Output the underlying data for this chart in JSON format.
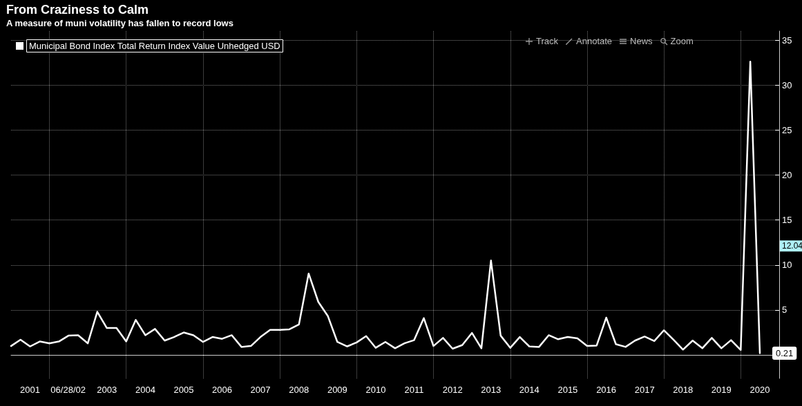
{
  "chart_data": {
    "type": "line",
    "title": "From Craziness to Calm",
    "subtitle": "A measure of muni volatility has fallen to record lows",
    "x": [
      "2001-01",
      "2001-04",
      "2001-07",
      "2001-10",
      "2002-01",
      "2002-04",
      "2002-07",
      "2002-10",
      "2003-01",
      "2003-04",
      "2003-07",
      "2003-10",
      "2004-01",
      "2004-04",
      "2004-07",
      "2004-10",
      "2005-01",
      "2005-04",
      "2005-07",
      "2005-10",
      "2006-01",
      "2006-04",
      "2006-07",
      "2006-10",
      "2007-01",
      "2007-04",
      "2007-07",
      "2007-10",
      "2008-01",
      "2008-04",
      "2008-07",
      "2008-10",
      "2009-01",
      "2009-04",
      "2009-07",
      "2009-10",
      "2010-01",
      "2010-04",
      "2010-07",
      "2010-10",
      "2011-01",
      "2011-04",
      "2011-07",
      "2011-10",
      "2012-01",
      "2012-04",
      "2012-07",
      "2012-10",
      "2013-01",
      "2013-04",
      "2013-07",
      "2013-10",
      "2014-01",
      "2014-04",
      "2014-07",
      "2014-10",
      "2015-01",
      "2015-04",
      "2015-07",
      "2015-10",
      "2016-01",
      "2016-04",
      "2016-07",
      "2016-10",
      "2017-01",
      "2017-04",
      "2017-07",
      "2017-10",
      "2018-01",
      "2018-04",
      "2018-07",
      "2018-10",
      "2019-01",
      "2019-04",
      "2019-07",
      "2019-10",
      "2020-01",
      "2020-04",
      "2020-07"
    ],
    "series": [
      {
        "name": "Municipal Bond Index Total Return Index Value Unhedged USD",
        "color": "#ffffff",
        "values": [
          1.0,
          1.7,
          0.95,
          1.5,
          1.3,
          1.5,
          2.15,
          2.2,
          1.3,
          4.8,
          3.0,
          3.0,
          1.5,
          3.9,
          2.2,
          2.9,
          1.6,
          2.0,
          2.5,
          2.2,
          1.45,
          2.0,
          1.8,
          2.2,
          0.9,
          1.0,
          2.0,
          2.8,
          2.8,
          2.85,
          3.4,
          9.05,
          5.9,
          4.35,
          1.45,
          0.95,
          1.4,
          2.1,
          0.8,
          1.45,
          0.75,
          1.3,
          1.65,
          4.1,
          1.0,
          1.9,
          0.7,
          1.1,
          2.45,
          0.75,
          10.5,
          2.15,
          0.8,
          2.0,
          0.95,
          0.9,
          2.2,
          1.75,
          2.0,
          1.85,
          1.0,
          1.05,
          4.15,
          1.2,
          0.9,
          1.6,
          2.05,
          1.55,
          2.75,
          1.7,
          0.6,
          1.6,
          0.75,
          1.9,
          0.75,
          1.65,
          0.55,
          32.6,
          0.21
        ],
        "value_labels": [
          null,
          null,
          null,
          null,
          null,
          null,
          null,
          null,
          null,
          null,
          null,
          null,
          null,
          null,
          null,
          null,
          null,
          null,
          null,
          null,
          null,
          null,
          null,
          null,
          null,
          null,
          null,
          null,
          null,
          null,
          null,
          null,
          null,
          null,
          null,
          null,
          null,
          null,
          null,
          null,
          null,
          null,
          null,
          null,
          null,
          null,
          null,
          null,
          null,
          null,
          null,
          null,
          null,
          null,
          null,
          null,
          null,
          null,
          null,
          null,
          null,
          null,
          null,
          null,
          null,
          null,
          null,
          null,
          null,
          null,
          null,
          null,
          null,
          null,
          null,
          null,
          null,
          null,
          "0.21"
        ]
      }
    ],
    "xlim": [
      "2001-01-01",
      "2021-01-01"
    ],
    "xticks": [
      {
        "value": "2002-01-01",
        "label": null
      },
      {
        "value": "2004-01-01",
        "label": null
      },
      {
        "value": "2006-01-01",
        "label": null
      },
      {
        "value": "2008-01-01",
        "label": null
      },
      {
        "value": "2010-01-01",
        "label": null
      },
      {
        "value": "2012-01-01",
        "label": null
      },
      {
        "value": "2014-01-01",
        "label": null
      },
      {
        "value": "2016-01-01",
        "label": null
      },
      {
        "value": "2018-01-01",
        "label": null
      },
      {
        "value": "2020-01-01",
        "label": null
      },
      {
        "value": "2001-07-01",
        "label": "2001"
      },
      {
        "value": "2002-06-28",
        "label": "06/28/02"
      },
      {
        "value": "2003-07-01",
        "label": "2003"
      },
      {
        "value": "2004-07-01",
        "label": "2004"
      },
      {
        "value": "2005-07-01",
        "label": "2005"
      },
      {
        "value": "2006-07-01",
        "label": "2006"
      },
      {
        "value": "2007-07-01",
        "label": "2007"
      },
      {
        "value": "2008-07-01",
        "label": "2008"
      },
      {
        "value": "2009-07-01",
        "label": "2009"
      },
      {
        "value": "2010-07-01",
        "label": "2010"
      },
      {
        "value": "2011-07-01",
        "label": "2011"
      },
      {
        "value": "2012-07-01",
        "label": "2012"
      },
      {
        "value": "2013-07-01",
        "label": "2013"
      },
      {
        "value": "2014-07-01",
        "label": "2014"
      },
      {
        "value": "2015-07-01",
        "label": "2015"
      },
      {
        "value": "2016-07-01",
        "label": "2016"
      },
      {
        "value": "2017-07-01",
        "label": "2017"
      },
      {
        "value": "2018-07-01",
        "label": "2018"
      },
      {
        "value": "2019-07-01",
        "label": "2019"
      },
      {
        "value": "2020-07-01",
        "label": "2020"
      }
    ],
    "ylim": [
      -2.6,
      36
    ],
    "yticks": [
      {
        "value": 0,
        "label": null
      },
      5,
      10,
      15,
      20,
      25,
      30,
      35
    ],
    "annotations": [
      "Track",
      "Annotate",
      "News",
      "Zoom",
      {
        "text": "12.04",
        "y": 12.04
      }
    ],
    "grid": true,
    "legend": "top left",
    "marker": "none",
    "line_style": "solid"
  }
}
